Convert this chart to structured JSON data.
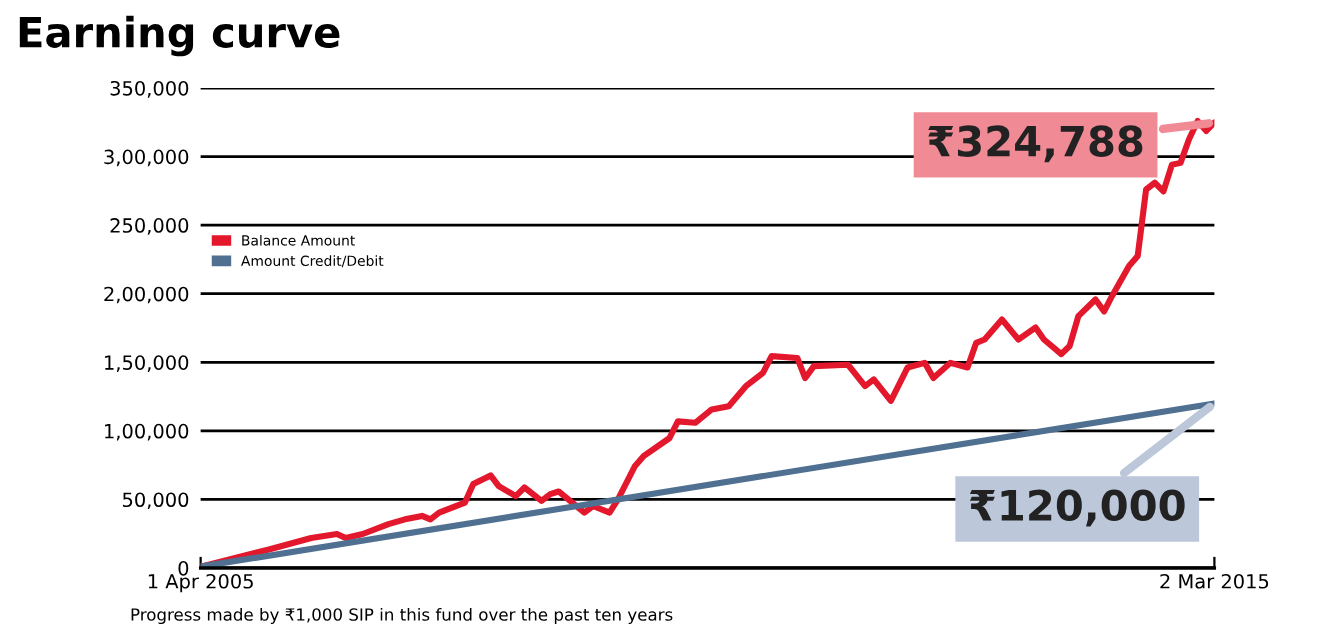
{
  "chart_data": {
    "type": "line",
    "title": "Earning curve",
    "series": [
      {
        "name": "Balance Amount",
        "color": "#e3182d",
        "x": [
          "2005-04",
          "2005-12",
          "2006-05",
          "2006-08",
          "2006-09",
          "2006-11",
          "2007-02",
          "2007-04",
          "2007-06",
          "2007-07",
          "2007-08",
          "2007-11",
          "2007-12",
          "2008-02",
          "2008-03",
          "2008-05",
          "2008-06",
          "2008-08",
          "2008-09",
          "2008-10",
          "2009-01",
          "2009-02",
          "2009-04",
          "2009-05",
          "2009-07",
          "2009-08",
          "2009-11",
          "2009-12",
          "2010-02",
          "2010-04",
          "2010-06",
          "2010-08",
          "2010-10",
          "2010-11",
          "2011-02",
          "2011-03",
          "2011-04",
          "2011-08",
          "2011-10",
          "2011-11",
          "2012-01",
          "2012-03",
          "2012-05",
          "2012-06",
          "2012-08",
          "2012-10",
          "2012-11",
          "2012-12",
          "2013-02",
          "2013-04",
          "2013-06",
          "2013-07",
          "2013-09",
          "2013-10",
          "2013-11",
          "2014-01",
          "2014-02",
          "2014-03",
          "2014-05",
          "2014-06",
          "2014-07",
          "2014-08",
          "2014-09",
          "2014-10",
          "2014-11",
          "2014-12",
          "2015-01",
          "2015-02",
          "2015-03-02"
        ],
        "values": [
          1000,
          13500,
          21900,
          24800,
          21900,
          24800,
          32000,
          35500,
          38000,
          35500,
          40400,
          47600,
          61200,
          67500,
          59700,
          52400,
          58700,
          49000,
          53900,
          55800,
          40400,
          45200,
          40400,
          50100,
          74400,
          81600,
          94700,
          106900,
          105900,
          115600,
          118000,
          132600,
          142300,
          154500,
          153100,
          138500,
          147200,
          148200,
          132600,
          137500,
          121900,
          146200,
          149600,
          138500,
          149600,
          146200,
          164200,
          166600,
          181200,
          166600,
          175400,
          166600,
          156000,
          161900,
          183700,
          195800,
          187100,
          198200,
          220200,
          227500,
          276000,
          280900,
          274600,
          294000,
          295400,
          312400,
          326000,
          318700,
          324788
        ]
      },
      {
        "name": "Amount Credit/Debit",
        "color": "#4f7090",
        "x": [
          "2005-04-01",
          "2015-03-02"
        ],
        "values": [
          1000,
          120000
        ]
      }
    ],
    "xlim": [
      "2005-04-01",
      "2015-03-02"
    ],
    "xticks": [
      {
        "value": "2005-04-01",
        "label": "1 Apr 2005"
      },
      {
        "value": "2015-03-02",
        "label": "2 Mar 2015"
      }
    ],
    "ylim": [
      0,
      350000
    ],
    "yticks": [
      0,
      {
        "value": 50000,
        "label": "50,000"
      },
      {
        "value": 100000,
        "label": "1,00,000"
      },
      {
        "value": 150000,
        "label": "1,50,000"
      },
      {
        "value": 200000,
        "label": "2,00,000"
      },
      {
        "value": 250000,
        "label": "250,000"
      },
      {
        "value": 300000,
        "label": "3,00,000"
      },
      {
        "value": 350000,
        "label": "350,000"
      }
    ],
    "grid": "y",
    "legend": "top left",
    "annotations": [
      {
        "text": "₹324,788",
        "x": "2015-03-02",
        "y": 324788
      },
      {
        "text": "₹120,000",
        "x": "2015-03-02",
        "y": 120000
      },
      "Progress made by ₹1,000 SIP in this fund over the past ten years"
    ]
  }
}
